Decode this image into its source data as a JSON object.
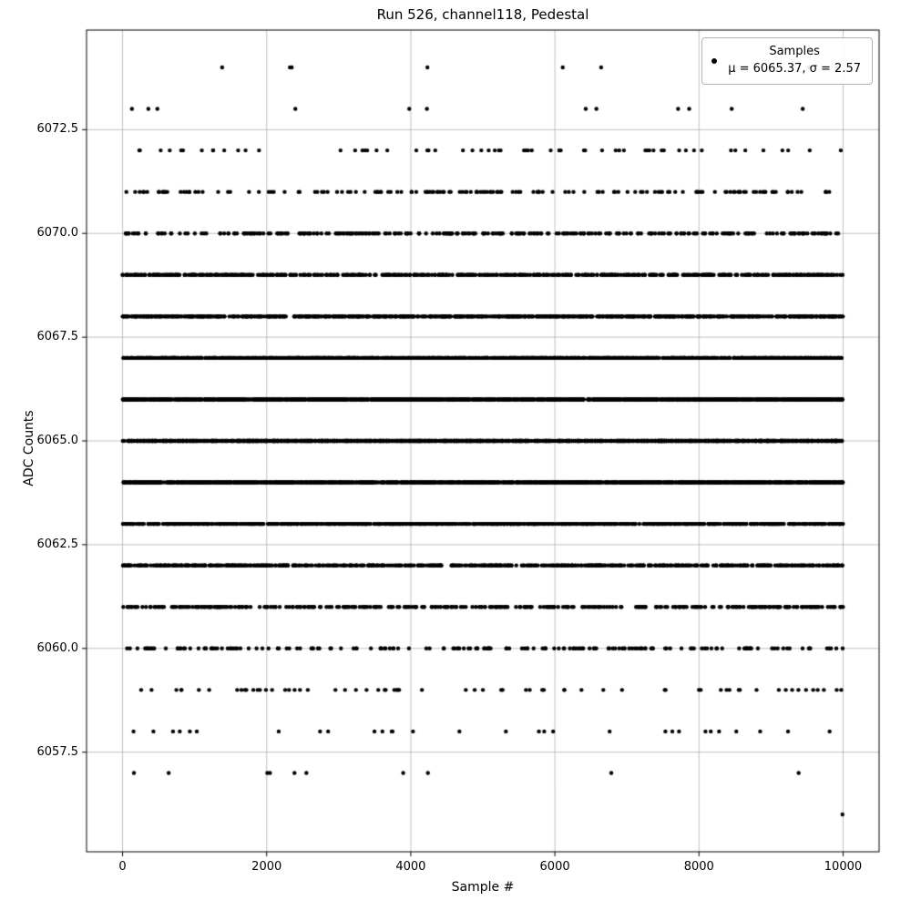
{
  "chart_data": {
    "type": "scatter",
    "title": "Run 526, channel118, Pedestal",
    "xlabel": "Sample #",
    "ylabel": "ADC Counts",
    "n_samples": 10000,
    "distribution": {
      "type": "gaussian_rounded_to_integer_adc",
      "mu": 6065.37,
      "sigma": 2.57,
      "min_adc": 6056,
      "max_adc": 6074
    },
    "xlim": [
      -500,
      10500
    ],
    "ylim": [
      6055.1,
      6074.9
    ],
    "x_ticks": [
      0,
      2000,
      4000,
      6000,
      8000,
      10000
    ],
    "y_ticks": [
      6057.5,
      6060.0,
      6062.5,
      6065.0,
      6067.5,
      6070.0,
      6072.5
    ],
    "grid": true,
    "grid_color": "#b0b0b0",
    "marker": {
      "shape": "point",
      "color": "#000000",
      "radius_px": 2.2
    },
    "legend": {
      "label": "Samples",
      "stats_label": "μ = 6065.37, σ = 2.57",
      "position": "upper right"
    }
  }
}
